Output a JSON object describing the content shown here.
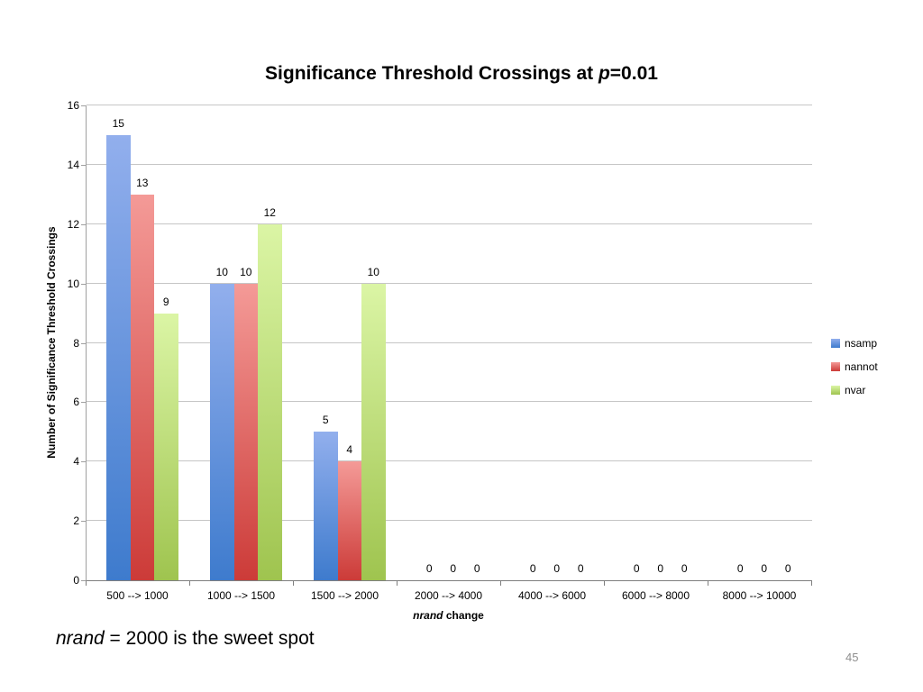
{
  "slide": {
    "note": {
      "italic": "nrand",
      "rest": " = 2000 is the sweet spot"
    },
    "page_number": "45"
  },
  "chart_data": {
    "type": "bar",
    "title": {
      "prefix": "Significance Threshold Crossings at ",
      "italic": "p",
      "suffix": "=0.01"
    },
    "ylabel": "Number of Significance Threshold Crossings",
    "xlabel": {
      "italic": "nrand",
      "rest": " change"
    },
    "categories": [
      "500 --> 1000",
      "1000 --> 1500",
      "1500 --> 2000",
      "2000 --> 4000",
      "4000 --> 6000",
      "6000 --> 8000",
      "8000 --> 10000"
    ],
    "series": [
      {
        "name": "nsamp",
        "color_top": "#92afed",
        "color_bottom": "#3e7bcd",
        "values": [
          15,
          10,
          5,
          0,
          0,
          0,
          0
        ]
      },
      {
        "name": "nannot",
        "color_top": "#f49a97",
        "color_bottom": "#cc3b38",
        "values": [
          13,
          10,
          4,
          0,
          0,
          0,
          0
        ]
      },
      {
        "name": "nvar",
        "color_top": "#dbf5a5",
        "color_bottom": "#9fc44f",
        "values": [
          9,
          12,
          10,
          0,
          0,
          0,
          0
        ]
      }
    ],
    "ylim": [
      0,
      16
    ],
    "ytick_step": 2,
    "grid": true,
    "legend_position": "right",
    "data_labels": true,
    "colors": {
      "gridline": "#c6c6c6",
      "y_axis": "#a0a0a0",
      "x_axis": "#7f7f7f",
      "page_number": "#8f8f8f"
    }
  }
}
